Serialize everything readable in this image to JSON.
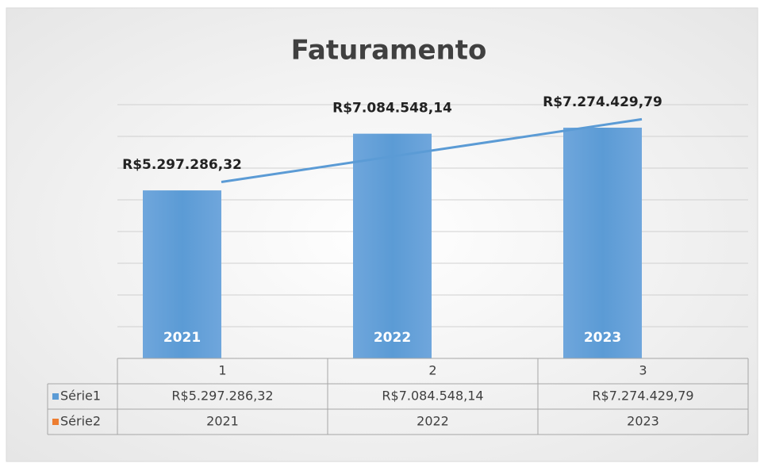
{
  "chart_data": {
    "type": "bar",
    "title": "Faturamento",
    "categories": [
      "1",
      "2",
      "3"
    ],
    "series": [
      {
        "name": "Série1",
        "color": "#5b9bd5",
        "values": [
          5297286.32,
          7084548.14,
          7274429.79
        ],
        "value_labels": [
          "R$5.297.286,32",
          "R$7.084.548,14",
          "R$7.274.429,79"
        ]
      },
      {
        "name": "Série2",
        "color": "#ed7d31",
        "values": [
          2021,
          2022,
          2023
        ]
      }
    ],
    "ylim": [
      0,
      8000000
    ],
    "yticks": [
      0,
      1000000,
      2000000,
      3000000,
      4000000,
      5000000,
      6000000,
      7000000,
      8000000
    ],
    "grid": true,
    "trendline": "linear",
    "data_table": true
  }
}
